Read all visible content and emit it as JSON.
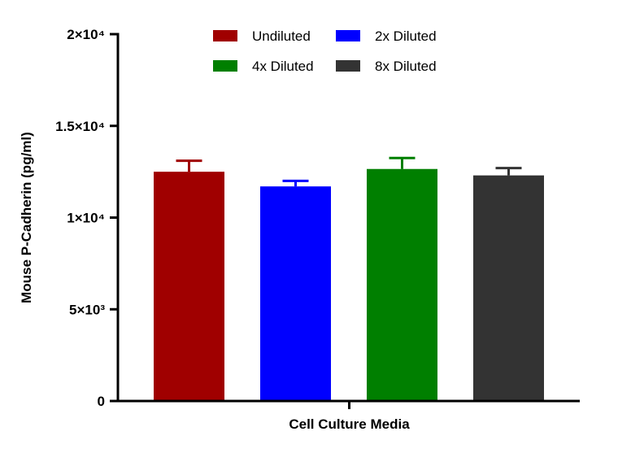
{
  "chart_data": {
    "type": "bar",
    "title": "",
    "xlabel": "Cell Culture Media",
    "ylabel": "Mouse P-Cadherin (pg/ml)",
    "ylim": [
      0,
      20000
    ],
    "yticks": [
      {
        "value": 0,
        "label": "0"
      },
      {
        "value": 5000,
        "label": "5×10³"
      },
      {
        "value": 10000,
        "label": "1×10⁴"
      },
      {
        "value": 15000,
        "label": "1.5×10⁴"
      },
      {
        "value": 20000,
        "label": "2×10⁴"
      }
    ],
    "grid": false,
    "legend_position": "top",
    "series": [
      {
        "name": "Undiluted",
        "value": 12500,
        "error": 600,
        "color": "#a00000"
      },
      {
        "name": "2x Diluted",
        "value": 11700,
        "error": 300,
        "color": "#0000ff"
      },
      {
        "name": "4x Diluted",
        "value": 12650,
        "error": 600,
        "color": "#007f00"
      },
      {
        "name": "8x Diluted",
        "value": 12300,
        "error": 400,
        "color": "#333333"
      }
    ]
  }
}
